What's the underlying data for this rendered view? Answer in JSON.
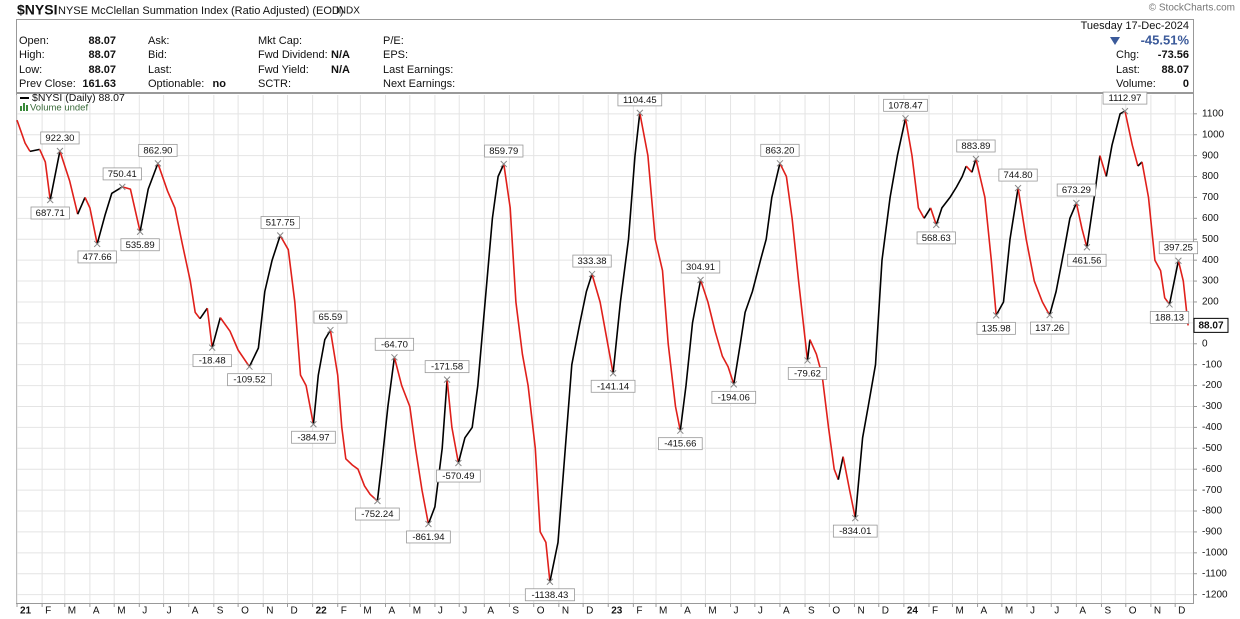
{
  "header": {
    "symbol": "$NYSI",
    "name": "NYSE McClellan Summation Index (Ratio Adjusted) (EOD)",
    "exchange": "INDX",
    "copyright": "© StockCharts.com",
    "date": "Tuesday 17-Dec-2024",
    "change_pct": "-45.51%",
    "columns": [
      [
        {
          "label": "Open:",
          "value": "88.07"
        },
        {
          "label": "High:",
          "value": "88.07"
        },
        {
          "label": "Low:",
          "value": "88.07"
        },
        {
          "label": "Prev Close:",
          "value": "161.63"
        }
      ],
      [
        {
          "label": "Ask:"
        },
        {
          "label": "Bid:"
        },
        {
          "label": "Last:"
        },
        {
          "label": "Optionable:",
          "value": "no"
        }
      ],
      [
        {
          "label": "Mkt Cap:"
        },
        {
          "label": "Fwd Dividend:",
          "value": "N/A"
        },
        {
          "label": "Fwd Yield:",
          "value": "N/A"
        },
        {
          "label": "SCTR:"
        }
      ],
      [
        {
          "label": "P/E:"
        },
        {
          "label": "EPS:"
        },
        {
          "label": "Last Earnings:"
        },
        {
          "label": "Next Earnings:"
        }
      ]
    ],
    "quote": [
      {
        "label": "Chg:",
        "value": "-73.56"
      },
      {
        "label": "Last:",
        "value": "88.07"
      },
      {
        "label": "Volume:",
        "value": "0"
      }
    ]
  },
  "chart_data": {
    "type": "line",
    "volume_legend": "Volume undef",
    "up_color": "#000000",
    "down_color": "#e0201b",
    "grid": true,
    "xlim": [
      0,
      1452
    ],
    "ylim": [
      -1240,
      1190
    ],
    "xticks": [
      {
        "value": 0,
        "label": "21"
      },
      {
        "value": 31,
        "label": "F"
      },
      {
        "value": 59,
        "label": "M"
      },
      {
        "value": 90,
        "label": "A"
      },
      {
        "value": 120,
        "label": "M"
      },
      {
        "value": 151,
        "label": "J"
      },
      {
        "value": 181,
        "label": "J"
      },
      {
        "value": 212,
        "label": "A"
      },
      {
        "value": 243,
        "label": "S"
      },
      {
        "value": 273,
        "label": "O"
      },
      {
        "value": 304,
        "label": "N"
      },
      {
        "value": 334,
        "label": "D"
      },
      {
        "value": 365,
        "label": "22"
      },
      {
        "value": 396,
        "label": "F"
      },
      {
        "value": 424,
        "label": "M"
      },
      {
        "value": 455,
        "label": "A"
      },
      {
        "value": 485,
        "label": "M"
      },
      {
        "value": 516,
        "label": "J"
      },
      {
        "value": 546,
        "label": "J"
      },
      {
        "value": 577,
        "label": "A"
      },
      {
        "value": 608,
        "label": "S"
      },
      {
        "value": 638,
        "label": "O"
      },
      {
        "value": 669,
        "label": "N"
      },
      {
        "value": 699,
        "label": "D"
      },
      {
        "value": 730,
        "label": "23"
      },
      {
        "value": 761,
        "label": "F"
      },
      {
        "value": 789,
        "label": "M"
      },
      {
        "value": 820,
        "label": "A"
      },
      {
        "value": 850,
        "label": "M"
      },
      {
        "value": 881,
        "label": "J"
      },
      {
        "value": 911,
        "label": "J"
      },
      {
        "value": 942,
        "label": "A"
      },
      {
        "value": 973,
        "label": "S"
      },
      {
        "value": 1003,
        "label": "O"
      },
      {
        "value": 1034,
        "label": "N"
      },
      {
        "value": 1064,
        "label": "D"
      },
      {
        "value": 1095,
        "label": "24"
      },
      {
        "value": 1126,
        "label": "F"
      },
      {
        "value": 1155,
        "label": "M"
      },
      {
        "value": 1186,
        "label": "A"
      },
      {
        "value": 1216,
        "label": "M"
      },
      {
        "value": 1247,
        "label": "J"
      },
      {
        "value": 1277,
        "label": "J"
      },
      {
        "value": 1308,
        "label": "A"
      },
      {
        "value": 1339,
        "label": "S"
      },
      {
        "value": 1369,
        "label": "O"
      },
      {
        "value": 1400,
        "label": "N"
      },
      {
        "value": 1430,
        "label": "D"
      }
    ],
    "yticks": [
      -1200,
      -1100,
      -1000,
      -900,
      -800,
      -700,
      -600,
      -500,
      -400,
      -300,
      -200,
      -100,
      0,
      100,
      200,
      300,
      400,
      500,
      600,
      700,
      800,
      900,
      1000,
      1100
    ],
    "x": [
      0,
      10,
      16,
      28,
      35,
      41,
      53,
      65,
      75,
      84,
      90,
      99,
      109,
      117,
      130,
      140,
      152,
      162,
      174,
      186,
      195,
      204,
      214,
      220,
      226,
      235,
      241,
      251,
      263,
      273,
      287,
      298,
      306,
      315,
      325,
      335,
      343,
      350,
      357,
      366,
      372,
      380,
      387,
      396,
      401,
      406,
      414,
      421,
      429,
      436,
      445,
      451,
      458,
      466,
      475,
      485,
      492,
      500,
      508,
      516,
      525,
      531,
      537,
      545,
      553,
      562,
      569,
      578,
      587,
      594,
      601,
      609,
      616,
      624,
      631,
      640,
      646,
      653,
      658,
      668,
      677,
      685,
      695,
      703,
      710,
      720,
      727,
      736,
      745,
      755,
      763,
      769,
      779,
      788,
      797,
      804,
      813,
      819,
      826,
      834,
      844,
      853,
      862,
      871,
      878,
      885,
      893,
      899,
      908,
      918,
      925,
      932,
      942,
      950,
      957,
      965,
      976,
      979,
      987,
      994,
      1002,
      1009,
      1014,
      1020,
      1028,
      1035,
      1044,
      1051,
      1060,
      1068,
      1078,
      1087,
      1097,
      1105,
      1113,
      1120,
      1128,
      1135,
      1142,
      1152,
      1160,
      1167,
      1172,
      1179,
      1184,
      1195,
      1203,
      1209,
      1218,
      1226,
      1236,
      1246,
      1256,
      1266,
      1275,
      1283,
      1293,
      1300,
      1308,
      1315,
      1321,
      1330,
      1337,
      1345,
      1352,
      1362,
      1368,
      1377,
      1384,
      1389,
      1397,
      1405,
      1412,
      1417,
      1423,
      1434,
      1440,
      1446
    ],
    "series": [
      {
        "name": "$NYSI (Daily) 88.07",
        "values": [
          1070,
          960,
          920,
          930,
          870,
          687.71,
          922.3,
          780,
          620,
          700,
          650,
          477.66,
          620,
          720,
          750.41,
          740,
          535.89,
          740,
          862.9,
          730,
          650,
          480,
          300,
          150,
          120,
          170,
          -18.48,
          125,
          60,
          -30,
          -109.52,
          -20,
          250,
          400,
          517.75,
          450,
          200,
          -150,
          -200,
          -384.97,
          -150,
          20,
          65.59,
          -150,
          -400,
          -550,
          -580,
          -600,
          -680,
          -720,
          -752.24,
          -550,
          -300,
          -64.7,
          -200,
          -300,
          -500,
          -700,
          -861.94,
          -780,
          -500,
          -171.58,
          -400,
          -570.49,
          -450,
          -400,
          -200,
          200,
          600,
          800,
          859.79,
          650,
          200,
          -50,
          -200,
          -500,
          -900,
          -950,
          -1138.43,
          -950,
          -500,
          -100,
          100,
          250,
          333.38,
          200,
          50,
          -141.14,
          200,
          500,
          900,
          1104.45,
          900,
          500,
          350,
          0,
          -300,
          -415.66,
          -200,
          100,
          304.91,
          200,
          60,
          -60,
          -110,
          -194.06,
          0,
          150,
          250,
          400,
          500,
          700,
          863.2,
          800,
          600,
          300,
          -79.62,
          20,
          -50,
          -150,
          -400,
          -600,
          -650,
          -540,
          -700,
          -834.01,
          -450,
          -300,
          -100,
          400,
          700,
          900,
          1078.47,
          900,
          650,
          600,
          650,
          568.63,
          650,
          700,
          750,
          800,
          850,
          820,
          883.89,
          700,
          400,
          135.98,
          200,
          500,
          744.8,
          500,
          300,
          200,
          137.26,
          250,
          450,
          600,
          673.29,
          550,
          461.56,
          700,
          900,
          800,
          950,
          1100,
          1112.97,
          950,
          850,
          870,
          700,
          400,
          350,
          220,
          188.13,
          397.25,
          300,
          88.07
        ],
        "value_labels": [
          null,
          null,
          null,
          null,
          null,
          "687.71",
          "922.30",
          null,
          null,
          null,
          null,
          "477.66",
          null,
          null,
          "750.41",
          null,
          "535.89",
          null,
          "862.90",
          null,
          null,
          null,
          null,
          null,
          null,
          null,
          "-18.48",
          null,
          null,
          null,
          "-109.52",
          null,
          null,
          null,
          "517.75",
          null,
          null,
          null,
          null,
          "-384.97",
          null,
          null,
          "65.59",
          null,
          null,
          null,
          null,
          null,
          null,
          null,
          "-752.24",
          null,
          null,
          "-64.70",
          null,
          null,
          null,
          null,
          "-861.94",
          null,
          null,
          "-171.58",
          null,
          "-570.49",
          null,
          null,
          null,
          null,
          null,
          null,
          "859.79",
          null,
          null,
          null,
          null,
          null,
          null,
          null,
          "-1138.43",
          null,
          null,
          null,
          null,
          null,
          "333.38",
          null,
          null,
          "-141.14",
          null,
          null,
          null,
          "1104.45",
          null,
          null,
          null,
          null,
          null,
          "-415.66",
          null,
          null,
          "304.91",
          null,
          null,
          null,
          null,
          "-194.06",
          null,
          null,
          null,
          null,
          null,
          null,
          "863.20",
          null,
          null,
          null,
          "-79.62",
          null,
          null,
          null,
          null,
          null,
          null,
          null,
          null,
          "-834.01",
          null,
          null,
          null,
          null,
          null,
          null,
          "1078.47",
          null,
          null,
          null,
          null,
          "568.63",
          null,
          null,
          null,
          null,
          null,
          null,
          "883.89",
          null,
          null,
          "135.98",
          null,
          null,
          "744.80",
          null,
          null,
          null,
          "137.26",
          null,
          null,
          null,
          "673.29",
          null,
          "461.56",
          null,
          null,
          null,
          null,
          null,
          "1112.97",
          null,
          null,
          null,
          null,
          null,
          null,
          null,
          "188.13",
          "397.25",
          null,
          null
        ]
      }
    ]
  }
}
